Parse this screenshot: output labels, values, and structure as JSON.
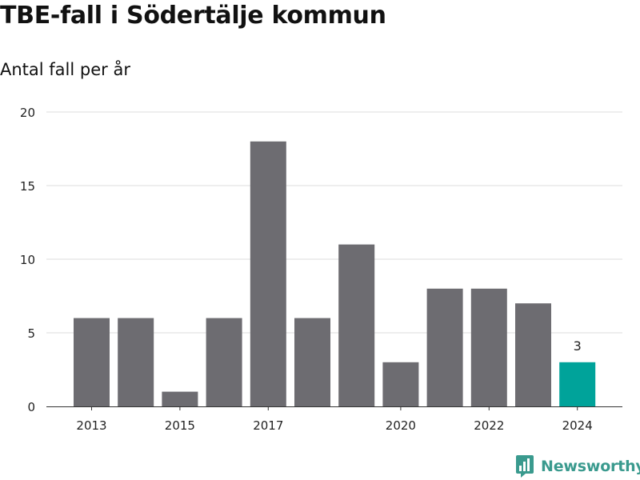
{
  "title": "TBE-fall i Södertälje kommun",
  "subtitle": "Antal fall per år",
  "brand": {
    "name": "Newsworthy",
    "icon": "newsworthy-logo-icon",
    "color": "#3a9a8e"
  },
  "colors": {
    "bar": "#6d6c71",
    "highlight": "#00a39a",
    "grid": "#dddddd",
    "axis": "#333333"
  },
  "chart_data": {
    "type": "bar",
    "title": "TBE-fall i Södertälje kommun",
    "subtitle": "Antal fall per år",
    "xlabel": "",
    "ylabel": "",
    "categories": [
      2013,
      2014,
      2015,
      2016,
      2017,
      2018,
      2019,
      2020,
      2021,
      2022,
      2023,
      2024
    ],
    "values": [
      6,
      6,
      1,
      6,
      18,
      6,
      11,
      3,
      8,
      8,
      7,
      3
    ],
    "highlight_index": 11,
    "data_labels": [
      {
        "index": 11,
        "text": "3"
      }
    ],
    "x_tick_labels": [
      "2013",
      "2015",
      "2017",
      "2020",
      "2022",
      "2024"
    ],
    "y_ticks": [
      0,
      5,
      10,
      15,
      20
    ],
    "ylim": [
      0,
      20
    ],
    "grid": true,
    "legend": "none"
  }
}
